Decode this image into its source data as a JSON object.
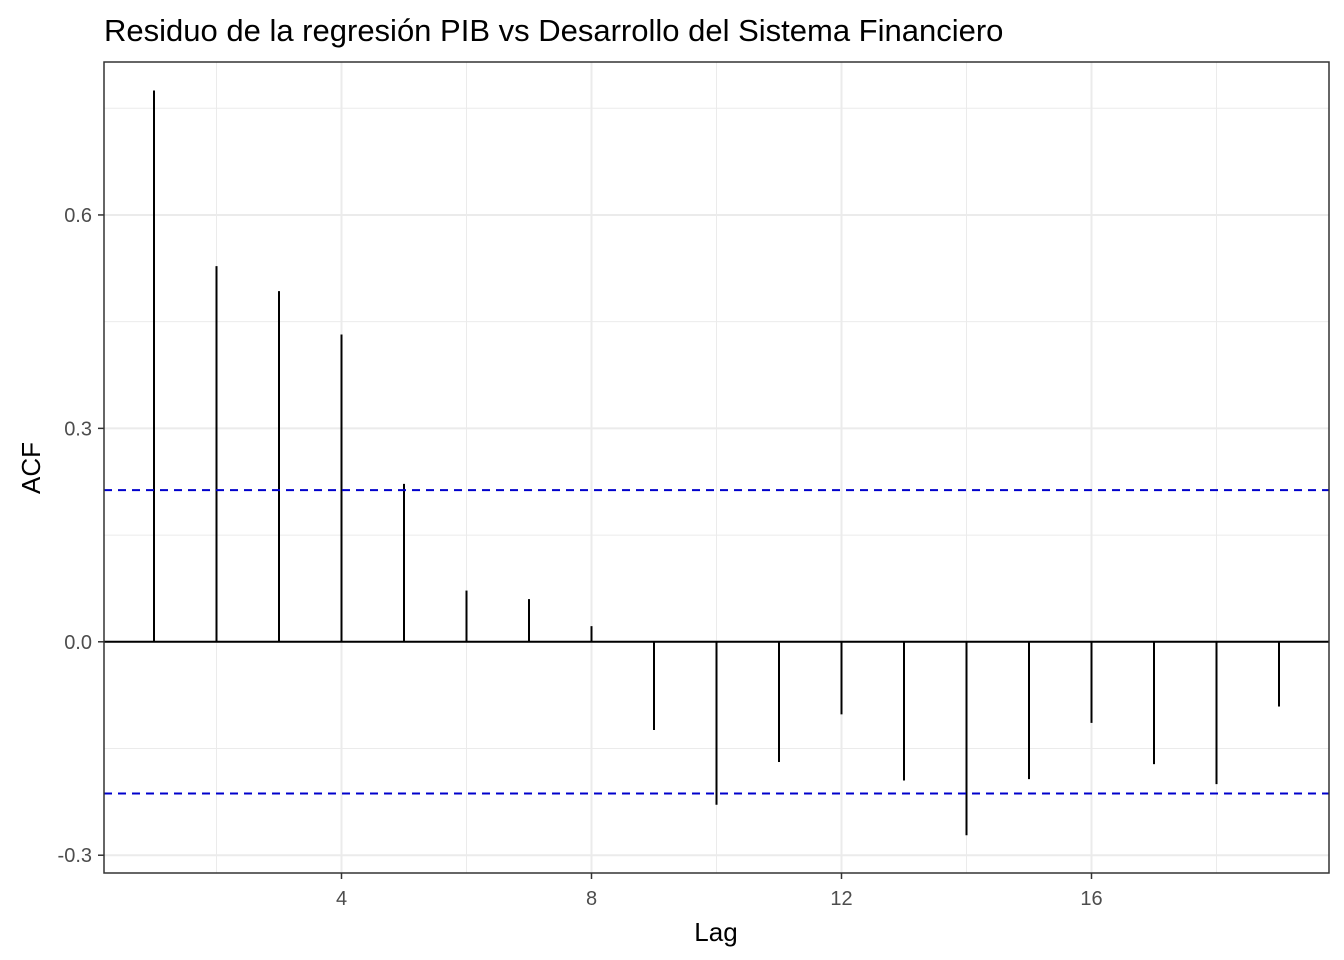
{
  "chart_data": {
    "type": "bar",
    "title": "Residuo de la regresión PIB vs Desarrollo del Sistema Financiero",
    "xlabel": "Lag",
    "ylabel": "ACF",
    "xlim": [
      0.2,
      19.8
    ],
    "ylim": [
      -0.325,
      0.815
    ],
    "x_ticks": [
      4,
      8,
      12,
      16
    ],
    "x_tick_labels": [
      "4",
      "8",
      "12",
      "16"
    ],
    "y_ticks": [
      -0.3,
      0.0,
      0.3,
      0.6
    ],
    "y_tick_labels": [
      "-0.3",
      "0.0",
      "0.3",
      "0.6"
    ],
    "x_minor_ticks": [
      2,
      6,
      10,
      14,
      18
    ],
    "y_minor_ticks": [
      -0.15,
      0.15,
      0.45,
      0.75
    ],
    "grid": true,
    "zero_line": true,
    "lags": [
      1,
      2,
      3,
      4,
      5,
      6,
      7,
      8,
      9,
      10,
      11,
      12,
      13,
      14,
      15,
      16,
      17,
      18,
      19
    ],
    "values": [
      0.775,
      0.528,
      0.493,
      0.432,
      0.222,
      0.072,
      0.06,
      0.022,
      -0.124,
      -0.229,
      -0.169,
      -0.102,
      -0.195,
      -0.272,
      -0.193,
      -0.114,
      -0.172,
      -0.2,
      -0.091
    ],
    "confidence_bound": 0.2132,
    "colors": {
      "bars": "#000000",
      "confidence": "#0000cc",
      "grid": "#ebebeb",
      "panel_border": "#333333",
      "background": "#ffffff"
    }
  }
}
